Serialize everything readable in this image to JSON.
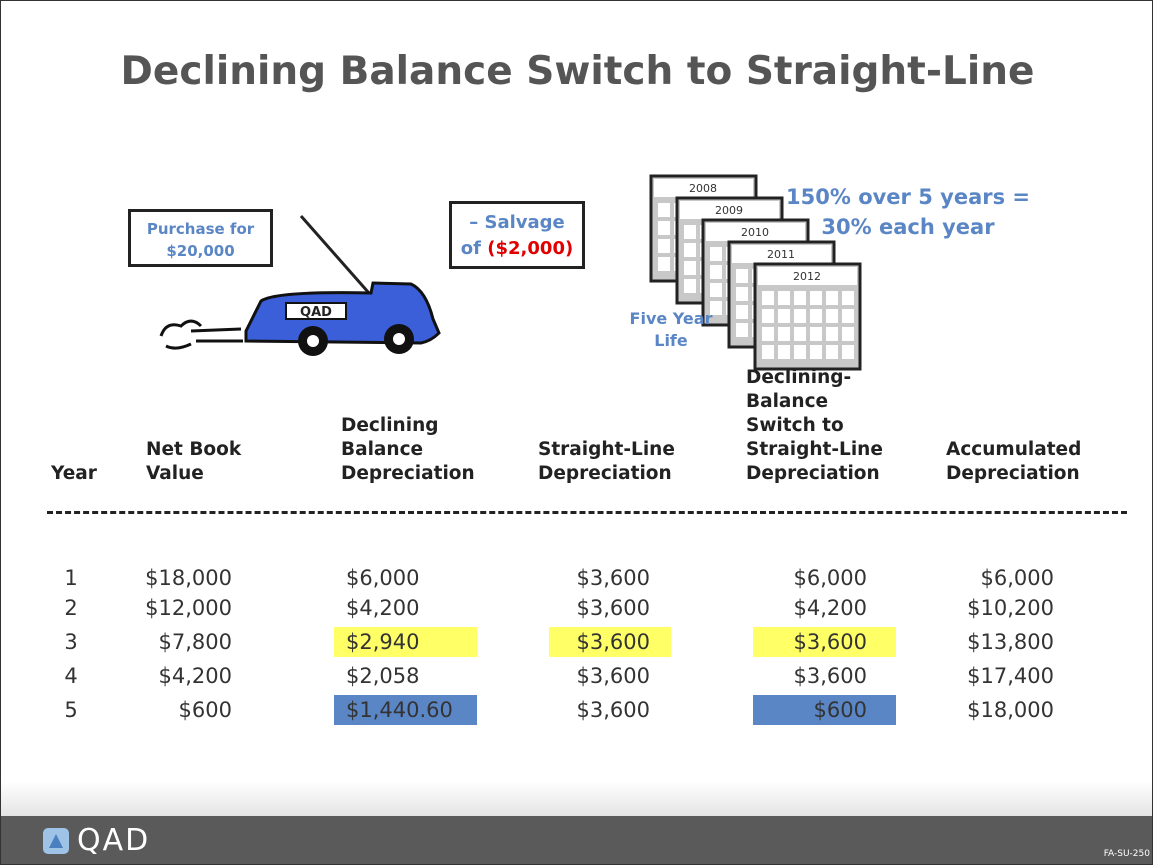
{
  "title": "Declining Balance Switch to Straight-Line",
  "purchase_callout": [
    "Purchase for",
    "$20,000"
  ],
  "truck_label": "QAD",
  "salvage_callout": {
    "prefix": "– Salvage",
    "line2": "of",
    "amount": "($2,000)"
  },
  "calendar_years": [
    "2008",
    "2009",
    "2010",
    "2011",
    "2012"
  ],
  "rate_note": [
    "150% over 5 years =",
    "30% each year"
  ],
  "life_note": [
    "Five Year",
    "Life"
  ],
  "table": {
    "headers": [
      [
        "Year"
      ],
      [
        "Net Book",
        "Value"
      ],
      [
        "Declining",
        "Balance",
        "Depreciation"
      ],
      [
        "Straight-Line",
        "Depreciation"
      ],
      [
        "Declining-",
        "Balance",
        "Switch to",
        "Straight-Line",
        "Depreciation"
      ],
      [
        "Accumulated",
        "Depreciation"
      ]
    ],
    "rows": [
      [
        "1",
        "$18,000",
        "$6,000",
        "$3,600",
        "$6,000",
        "$6,000"
      ],
      [
        "2",
        "$12,000",
        "$4,200",
        "$3,600",
        "$4,200",
        "$10,200"
      ],
      [
        "3",
        "$7,800",
        "$2,940",
        "$3,600",
        "$3,600",
        "$13,800"
      ],
      [
        "4",
        "$4,200",
        "$2,058",
        "$3,600",
        "$3,600",
        "$17,400"
      ],
      [
        "5",
        "$600",
        "$1,440.60",
        "$3,600",
        "$600",
        "$18,000"
      ]
    ]
  },
  "footer": {
    "logo": "QAD",
    "code": "FA-SU-250"
  }
}
